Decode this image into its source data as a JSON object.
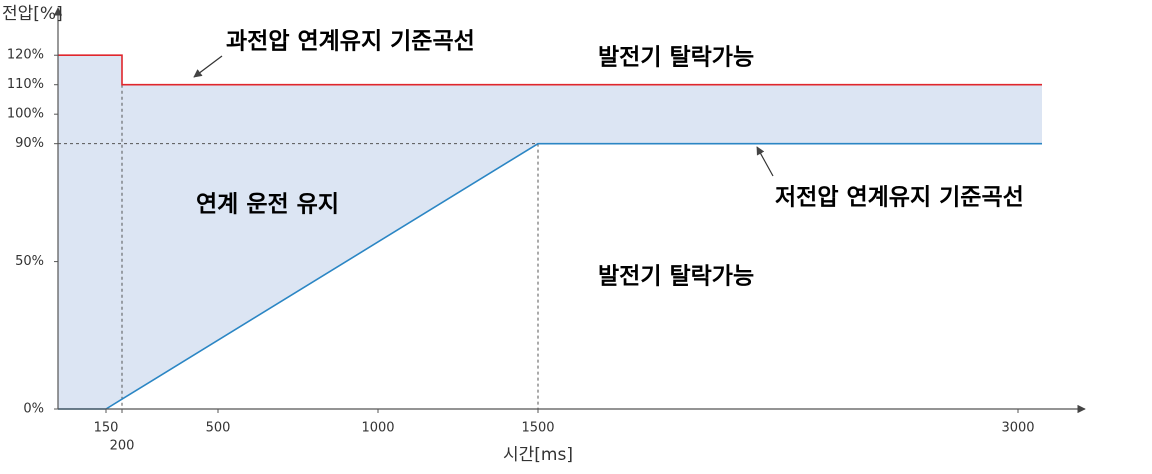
{
  "chart_data": {
    "type": "line",
    "x_label": "시간[ms]",
    "y_label": "전압[%]",
    "xlim": [
      0,
      3209
    ],
    "ylim": [
      0,
      135
    ],
    "xticks": [
      150,
      200,
      500,
      1000,
      1500,
      3000
    ],
    "yticks": [
      {
        "value": 0,
        "label": "0%"
      },
      {
        "value": 50,
        "label": "50%"
      },
      {
        "value": 90,
        "label": "90%"
      },
      {
        "value": 100,
        "label": "100%"
      },
      {
        "value": 110,
        "label": "110%"
      },
      {
        "value": 120,
        "label": "120%"
      }
    ],
    "series": [
      {
        "color": "#e0262c",
        "x": [
          0,
          200,
          200,
          3075
        ],
        "values": [
          120,
          120,
          110,
          110
        ]
      },
      {
        "color": "#2b86c4",
        "x": [
          0,
          150,
          1500,
          3075
        ],
        "values": [
          0,
          0,
          90,
          90
        ]
      }
    ],
    "fill_color": "#dce5f3",
    "annotations": [
      "과전압 연계유지 기준곡선",
      "발전기 탈락가능",
      "연계 운전 유지",
      "저전압 연계유지 기준곡선",
      "발전기 탈락가능"
    ]
  }
}
